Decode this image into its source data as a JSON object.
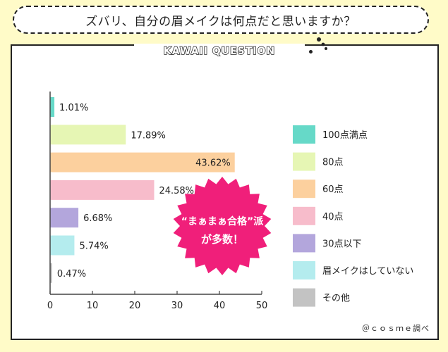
{
  "question": "ズバリ、自分の眉メイクは何点だと思いますか？",
  "tag": "KAWAII QUESTION",
  "callout": {
    "line1": "“まぁまぁ合格”派",
    "line2": "が多数！"
  },
  "credit": "＠ｃｏｓｍｅ調べ",
  "chart_data": {
    "type": "bar",
    "orientation": "horizontal",
    "categories": [
      "100点満点",
      "80点",
      "60点",
      "40点",
      "30点以下",
      "眉メイクはしていない",
      "その他"
    ],
    "values": [
      1.01,
      17.89,
      43.62,
      24.58,
      6.68,
      5.74,
      0.47
    ],
    "value_labels": [
      "1.01%",
      "17.89%",
      "43.62%",
      "24.58%",
      "6.68%",
      "5.74%",
      "0.47%"
    ],
    "colors": [
      "#66d9c8",
      "#e6f6b4",
      "#fcd09e",
      "#f7bccb",
      "#b3a6dc",
      "#b4ecee",
      "#c3c3c3"
    ],
    "xlim": [
      0,
      50
    ],
    "xticks": [
      "0",
      "10",
      "20",
      "30",
      "40",
      "50"
    ],
    "legend_position": "right",
    "grid": false
  }
}
